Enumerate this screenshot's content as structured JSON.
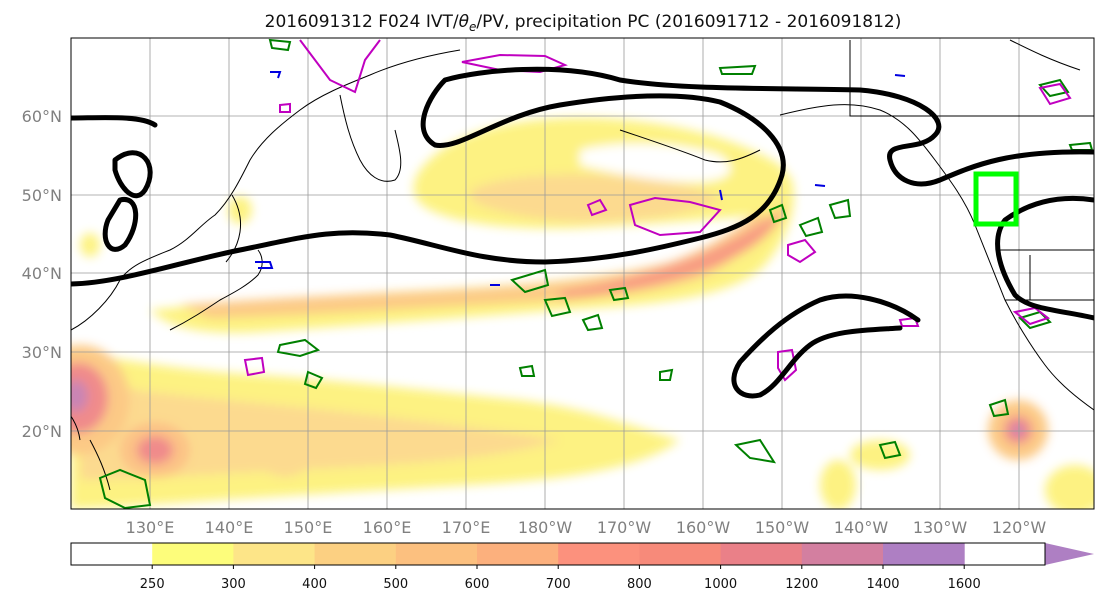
{
  "figure": {
    "title_prefix": "2016091312 F024 IVT/",
    "title_theta": "θ",
    "title_theta_sub": "e",
    "title_suffix": "/PV, precipitation PC (2016091712 - 2016091812)"
  },
  "map": {
    "lon_labels": [
      "130°E",
      "140°E",
      "150°E",
      "160°E",
      "170°E",
      "180°W",
      "170°W",
      "160°W",
      "150°W",
      "140°W",
      "130°W",
      "120°W"
    ],
    "lat_labels": [
      "60°N",
      "50°N",
      "40°N",
      "30°N",
      "20°N"
    ],
    "colors": {
      "pv_contour": "#000000",
      "theta_e_positive": "#c000c0",
      "theta_e_negative": "#0000e0",
      "precip_pc": "#008000",
      "target_box": "#00ff00"
    }
  },
  "colorbar": {
    "levels": [
      "250",
      "300",
      "400",
      "500",
      "600",
      "700",
      "800",
      "1000",
      "1200",
      "1400",
      "1600"
    ],
    "colors": [
      "#ffffff",
      "#fdfd7b",
      "#fde588",
      "#fcd082",
      "#fcc07f",
      "#fcb07d",
      "#fc917d",
      "#f78a7a",
      "#ea8088",
      "#d37fa0",
      "#ae7fc3"
    ]
  }
}
